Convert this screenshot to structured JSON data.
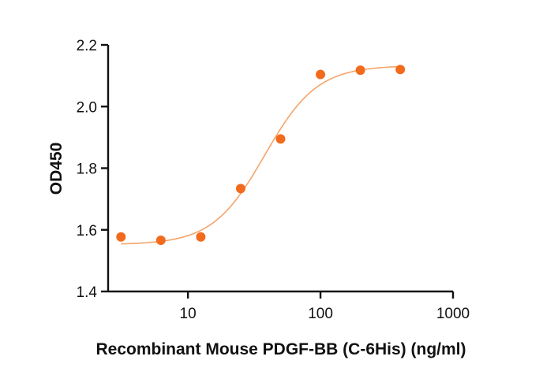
{
  "chart_data": {
    "type": "scatter",
    "xlabel": "Recombinant Mouse PDGF-BB (C-6His) (ng/ml)",
    "ylabel": "OD450",
    "xscale": "log",
    "xlim": [
      2.5,
      1000
    ],
    "ylim": [
      1.4,
      2.2
    ],
    "x_ticks": [
      10,
      100,
      1000
    ],
    "x_tick_labels": [
      "10",
      "100",
      "1000"
    ],
    "y_ticks": [
      1.4,
      1.6,
      1.8,
      2.0,
      2.2
    ],
    "y_tick_labels": [
      "1.4",
      "1.6",
      "1.8",
      "2.0",
      "2.2"
    ],
    "grid": false,
    "series": [
      {
        "points": [
          {
            "x": 3.125,
            "y": 1.577
          },
          {
            "x": 6.25,
            "y": 1.566
          },
          {
            "x": 12.5,
            "y": 1.577
          },
          {
            "x": 25,
            "y": 1.734
          },
          {
            "x": 50,
            "y": 1.895
          },
          {
            "x": 100,
            "y": 2.104
          },
          {
            "x": 200,
            "y": 2.118
          },
          {
            "x": 400,
            "y": 2.12
          }
        ],
        "fit": {
          "model": "4PL",
          "bottom": 1.552,
          "top": 2.133,
          "ec50": 38,
          "hill": 2.2,
          "x_range": [
            3.125,
            400
          ]
        },
        "color": "#F26B1D",
        "line_color": "#F5A46A"
      }
    ]
  }
}
